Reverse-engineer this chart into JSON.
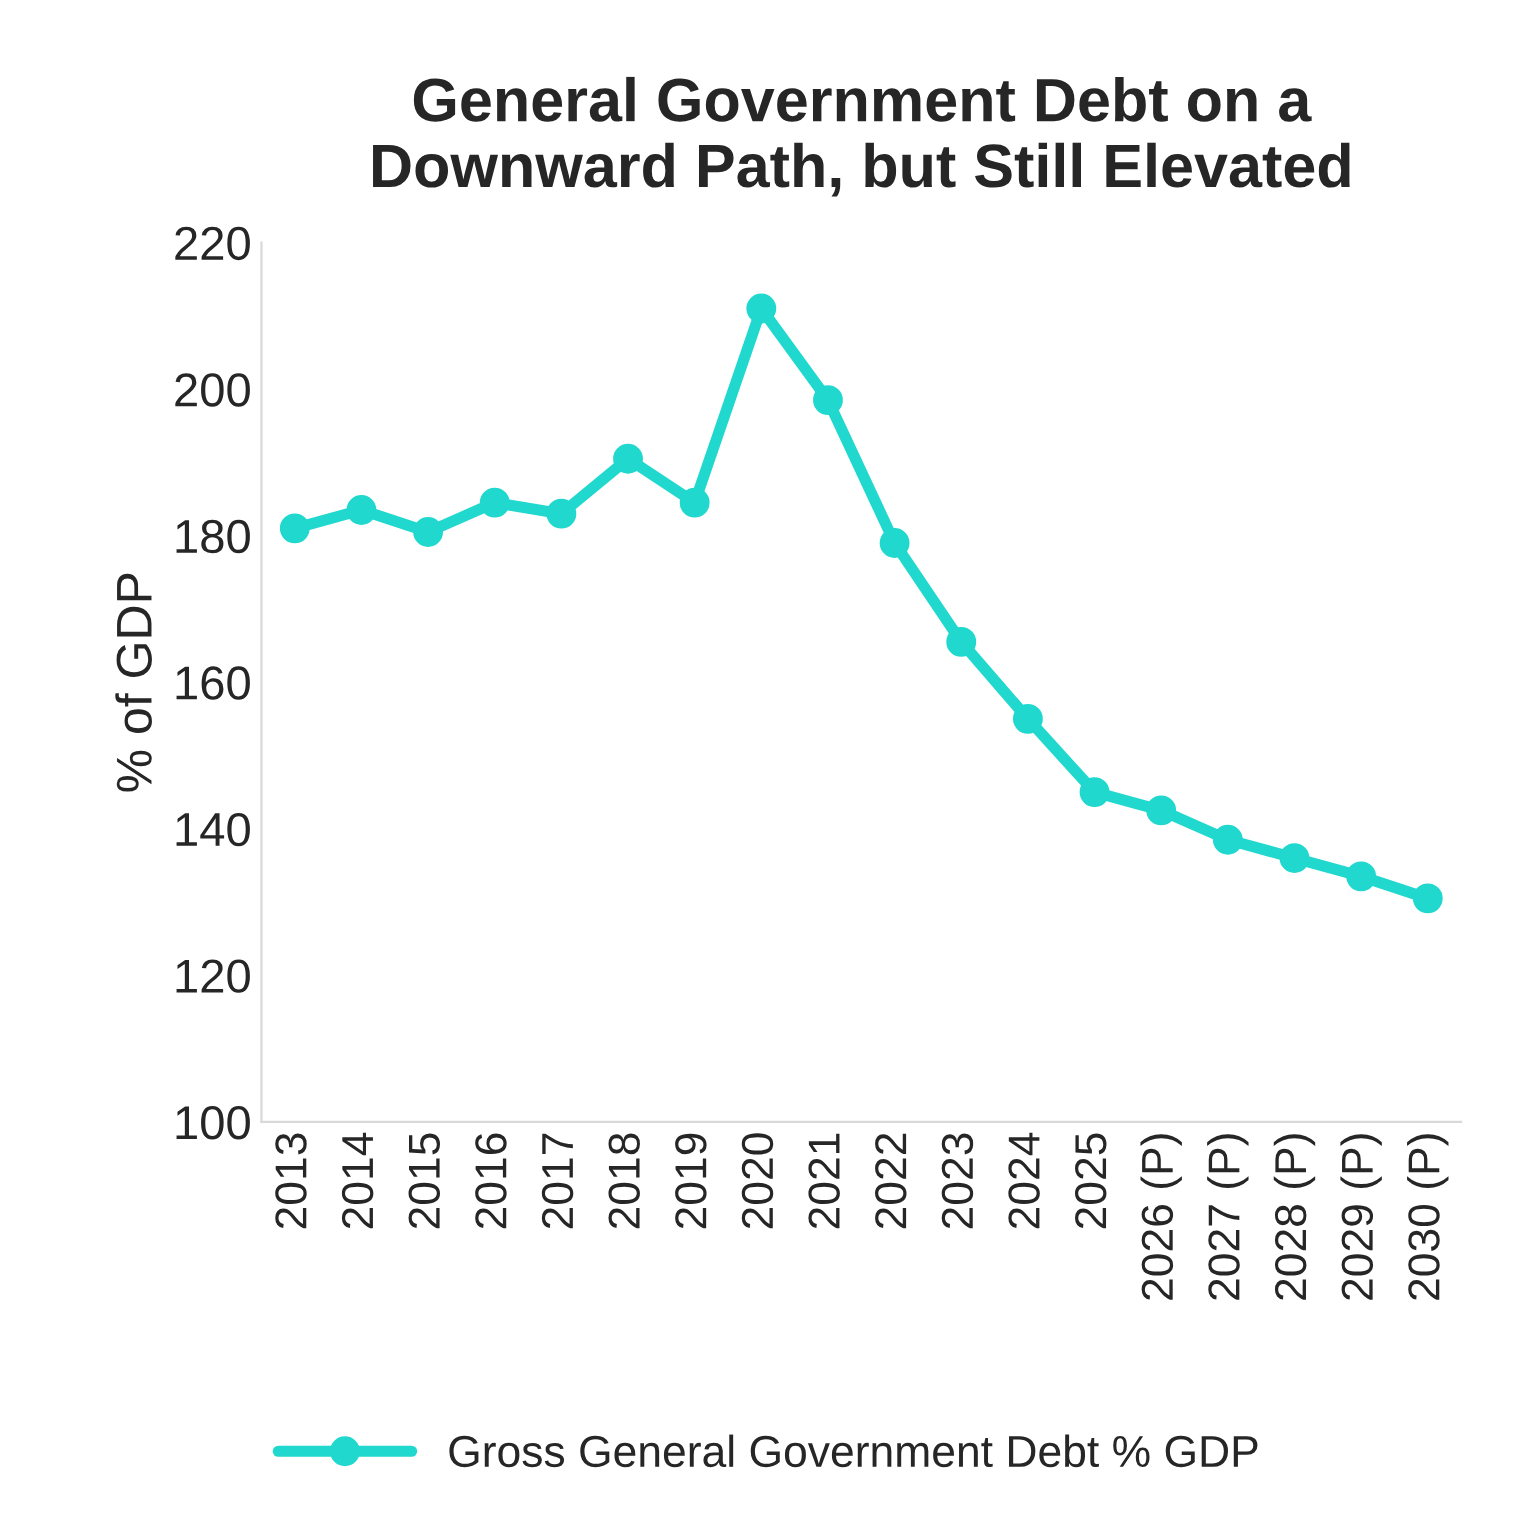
{
  "chart_data": {
    "type": "line",
    "title": "General Government Debt on a\nDownward Path, but Still Elevated",
    "ylabel": "% of GDP",
    "categories": [
      "2013",
      "2014",
      "2015",
      "2016",
      "2017",
      "2018",
      "2019",
      "2020",
      "2021",
      "2022",
      "2023",
      "2024",
      "2025",
      "2026 (P)",
      "2027 (P)",
      "2028 (P)",
      "2029 (P)",
      "2030 (P)"
    ],
    "series": [
      {
        "name": "Gross General Government Debt % GDP",
        "color": "#20d8ce",
        "values": [
          181,
          183.5,
          180.5,
          184.5,
          183,
          190.5,
          184.5,
          211,
          198.5,
          179,
          165.5,
          155,
          145,
          142.5,
          138.5,
          136,
          133.5,
          130.5
        ]
      }
    ],
    "ylim": [
      100,
      220
    ],
    "yticks": [
      100,
      120,
      140,
      160,
      180,
      200,
      220
    ],
    "grid": false,
    "legend": "bottom",
    "marker": "circle",
    "line_style": "solid"
  }
}
